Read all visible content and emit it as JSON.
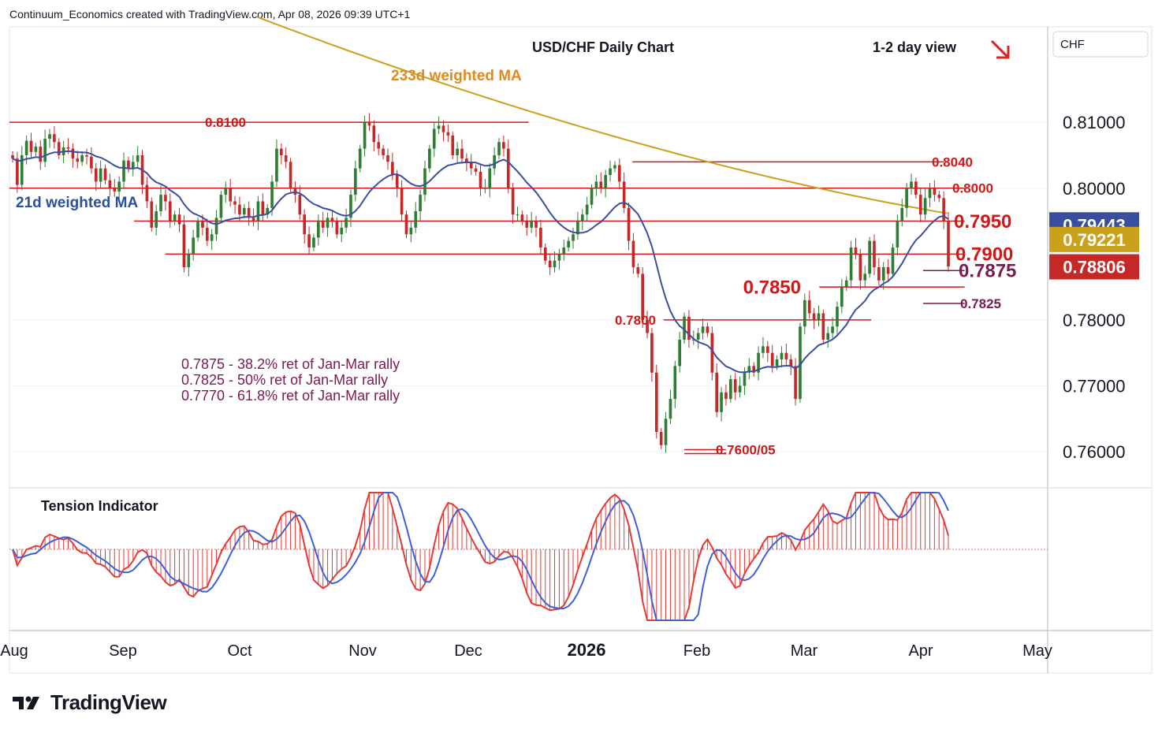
{
  "header": {
    "caption": "Continuum_Economics created with TradingView.com, Apr 08, 2026 09:39 UTC+1"
  },
  "footer": {
    "brand": "TradingView",
    "logo_icon": "tradingview-logo-icon"
  },
  "colors": {
    "up": "#2e7d32",
    "down": "#c62828",
    "ma21": "#3a4ea0",
    "ma233": "#c9a11a",
    "level": "#d01818",
    "fib": "#7b1b4f",
    "tension_red": "#e53935",
    "tension_blue": "#3f5fd6",
    "ma233_text": "#e08a1e",
    "ma21_text": "#2a4f9e"
  },
  "chart_data": [
    {
      "type": "candlestick",
      "title": "USD/CHF Daily Chart",
      "view_label": "1-2 day view",
      "view_icon": "down-arrow-icon",
      "currency_label": "CHF",
      "x_axis_labels": [
        "Aug",
        "Sep",
        "Oct",
        "Nov",
        "Dec",
        "2026",
        "Feb",
        "Mar",
        "Apr",
        "May"
      ],
      "y_ticks": [
        "0.81000",
        "0.80000",
        "0.78000",
        "0.77000",
        "0.76000"
      ],
      "ylim": [
        0.7545,
        0.8245
      ],
      "price_tags": [
        {
          "value": 0.79443,
          "label": "0.79443",
          "color": "#3a4ea0"
        },
        {
          "value": 0.79221,
          "label": "0.79221",
          "color": "#c9a11a"
        },
        {
          "value": 0.78806,
          "label": "0.78806",
          "color": "#c62828"
        }
      ],
      "levels": [
        {
          "value": 0.81,
          "label": "0.8100",
          "from": 0.0,
          "to": 0.5
        },
        {
          "value": 0.804,
          "label": "0.8040",
          "from": 0.6,
          "to": 0.9
        },
        {
          "value": 0.8,
          "label": "0.8000",
          "from": 0.0,
          "to": 0.92
        },
        {
          "value": 0.795,
          "label": "0.7950",
          "from": 0.12,
          "to": 0.92
        },
        {
          "value": 0.79,
          "label": "0.7900",
          "from": 0.15,
          "to": 0.92
        },
        {
          "value": 0.7875,
          "label": "0.7875",
          "from": 0.88,
          "to": 0.92
        },
        {
          "value": 0.785,
          "label": "0.7850",
          "from": 0.78,
          "to": 0.92
        },
        {
          "value": 0.7825,
          "label": "0.7825",
          "from": 0.88,
          "to": 0.92
        },
        {
          "value": 0.78,
          "label": "0.7800",
          "from": 0.63,
          "to": 0.83
        },
        {
          "value": 0.7603,
          "label": "0.7600/05",
          "from": 0.65,
          "to": 0.69
        }
      ],
      "annotations": [
        {
          "text": "233d weighted MA",
          "color": "#e08a1e"
        },
        {
          "text": "21d weighted MA",
          "color": "#2a4f9e"
        },
        {
          "text": "0.7875 - 38.2% ret of Jan-Mar rally",
          "color": "#7b1b4f"
        },
        {
          "text": "0.7825 - 50% ret of Jan-Mar rally",
          "color": "#7b1b4f"
        },
        {
          "text": "0.7770 - 61.8% ret of Jan-Mar rally",
          "color": "#7b1b4f"
        }
      ],
      "closes": [
        0.8045,
        0.8005,
        0.805,
        0.8072,
        0.8055,
        0.8063,
        0.804,
        0.8075,
        0.8082,
        0.807,
        0.805,
        0.8062,
        0.806,
        0.8045,
        0.804,
        0.805,
        0.8048,
        0.803,
        0.801,
        0.803,
        0.8012,
        0.8,
        0.7995,
        0.801,
        0.8042,
        0.803,
        0.804,
        0.805,
        0.8005,
        0.798,
        0.794,
        0.7965,
        0.799,
        0.798,
        0.795,
        0.796,
        0.7945,
        0.788,
        0.79,
        0.7925,
        0.795,
        0.794,
        0.792,
        0.793,
        0.7955,
        0.799,
        0.8,
        0.798,
        0.7975,
        0.796,
        0.797,
        0.7955,
        0.795,
        0.798,
        0.796,
        0.797,
        0.801,
        0.806,
        0.805,
        0.804,
        0.8,
        0.799,
        0.796,
        0.793,
        0.791,
        0.7925,
        0.795,
        0.794,
        0.7955,
        0.795,
        0.793,
        0.794,
        0.7955,
        0.799,
        0.803,
        0.806,
        0.81,
        0.8095,
        0.807,
        0.806,
        0.805,
        0.804,
        0.802,
        0.8,
        0.796,
        0.793,
        0.794,
        0.7965,
        0.799,
        0.803,
        0.806,
        0.809,
        0.8095,
        0.8085,
        0.808,
        0.805,
        0.806,
        0.8045,
        0.804,
        0.803,
        0.8025,
        0.8,
        0.8,
        0.803,
        0.805,
        0.807,
        0.806,
        0.8,
        0.796,
        0.796,
        0.795,
        0.794,
        0.795,
        0.794,
        0.791,
        0.789,
        0.788,
        0.789,
        0.79,
        0.791,
        0.792,
        0.793,
        0.795,
        0.796,
        0.7975,
        0.8,
        0.801,
        0.8,
        0.802,
        0.803,
        0.8035,
        0.801,
        0.797,
        0.792,
        0.788,
        0.787,
        0.78,
        0.778,
        0.772,
        0.763,
        0.761,
        0.765,
        0.768,
        0.773,
        0.777,
        0.7805,
        0.777,
        0.777,
        0.778,
        0.779,
        0.778,
        0.772,
        0.766,
        0.769,
        0.768,
        0.771,
        0.769,
        0.77,
        0.772,
        0.773,
        0.772,
        0.775,
        0.776,
        0.775,
        0.773,
        0.774,
        0.775,
        0.774,
        0.773,
        0.768,
        0.779,
        0.783,
        0.781,
        0.78,
        0.781,
        0.777,
        0.778,
        0.779,
        0.782,
        0.785,
        0.786,
        0.791,
        0.79,
        0.786,
        0.787,
        0.792,
        0.788,
        0.786,
        0.788,
        0.787,
        0.791,
        0.795,
        0.797,
        0.8,
        0.801,
        0.799,
        0.796,
        0.7985,
        0.8,
        0.799,
        0.7985,
        0.795,
        0.7881
      ]
    },
    {
      "type": "bar",
      "title": "Tension Indicator",
      "ylim": [
        -1.0,
        1.0
      ]
    }
  ]
}
